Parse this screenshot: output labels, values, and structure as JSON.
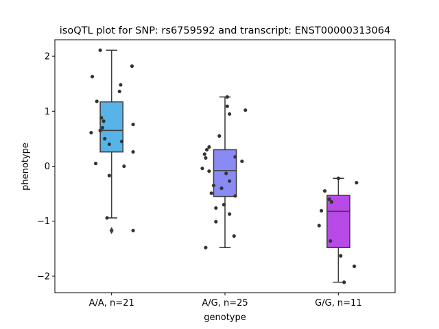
{
  "chart_data": {
    "type": "box",
    "title": "isoQTL plot for SNP: rs6759592 and transcript: ENST00000313064",
    "xlabel": "genotype",
    "ylabel": "phenotype",
    "ylim": [
      -2.3,
      2.3
    ],
    "yticks": [
      2,
      1,
      0,
      -1,
      -2
    ],
    "ytick_labels": [
      "2",
      "1",
      "0",
      "−1",
      "−2"
    ],
    "grid": false,
    "categories": [
      "A/A, n=21",
      "A/G, n=25",
      "G/G, n=11"
    ],
    "colors": [
      "#56b4e9",
      "#8a8af5",
      "#b84ae8"
    ],
    "boxes": [
      {
        "q1": 0.26,
        "median": 0.65,
        "q3": 1.17,
        "whisker_low": -0.94,
        "whisker_high": 2.11,
        "outliers": [
          -1.17
        ]
      },
      {
        "q1": -0.55,
        "median": -0.08,
        "q3": 0.3,
        "whisker_low": -1.48,
        "whisker_high": 1.26,
        "outliers": []
      },
      {
        "q1": -1.48,
        "median": -0.82,
        "q3": -0.53,
        "whisker_low": -2.11,
        "whisker_high": -0.22,
        "outliers": []
      }
    ],
    "points": [
      [
        [
          -0.1,
          2.11
        ],
        [
          -0.17,
          1.63
        ],
        [
          0.18,
          1.82
        ],
        [
          0.08,
          1.48
        ],
        [
          0.07,
          1.36
        ],
        [
          -0.13,
          1.18
        ],
        [
          -0.09,
          0.88
        ],
        [
          -0.07,
          0.82
        ],
        [
          0.19,
          0.76
        ],
        [
          -0.08,
          0.7
        ],
        [
          -0.1,
          0.65
        ],
        [
          -0.18,
          0.61
        ],
        [
          -0.06,
          0.5
        ],
        [
          0.09,
          0.45
        ],
        [
          -0.02,
          0.4
        ],
        [
          0.19,
          0.26
        ],
        [
          -0.14,
          0.05
        ],
        [
          0.11,
          0.0
        ],
        [
          -0.02,
          -0.17
        ],
        [
          -0.04,
          -0.94
        ],
        [
          0.19,
          -1.17
        ]
      ],
      [
        [
          0.02,
          1.26
        ],
        [
          0.02,
          1.09
        ],
        [
          0.18,
          1.02
        ],
        [
          0.04,
          0.95
        ],
        [
          -0.05,
          0.55
        ],
        [
          -0.14,
          0.35
        ],
        [
          -0.16,
          0.3
        ],
        [
          -0.18,
          0.22
        ],
        [
          -0.17,
          0.15
        ],
        [
          0.09,
          0.17
        ],
        [
          0.15,
          0.09
        ],
        [
          -0.2,
          -0.04
        ],
        [
          -0.14,
          -0.09
        ],
        [
          0.01,
          -0.13
        ],
        [
          0.04,
          -0.27
        ],
        [
          -0.1,
          -0.35
        ],
        [
          -0.03,
          -0.4
        ],
        [
          -0.12,
          -0.49
        ],
        [
          0.09,
          -0.54
        ],
        [
          -0.01,
          -0.7
        ],
        [
          -0.08,
          -0.76
        ],
        [
          0.04,
          -0.87
        ],
        [
          -0.08,
          -1.01
        ],
        [
          0.08,
          -1.27
        ],
        [
          -0.17,
          -1.48
        ]
      ],
      [
        [
          0.16,
          -0.3
        ],
        [
          -0.12,
          -0.45
        ],
        [
          -0.08,
          -0.6
        ],
        [
          -0.06,
          -0.65
        ],
        [
          -0.15,
          -0.81
        ],
        [
          -0.17,
          -1.08
        ],
        [
          -0.07,
          -1.36
        ],
        [
          0.02,
          -1.63
        ],
        [
          0.14,
          -1.82
        ],
        [
          0.05,
          -2.11
        ],
        [
          0.0,
          -0.22
        ]
      ]
    ]
  }
}
